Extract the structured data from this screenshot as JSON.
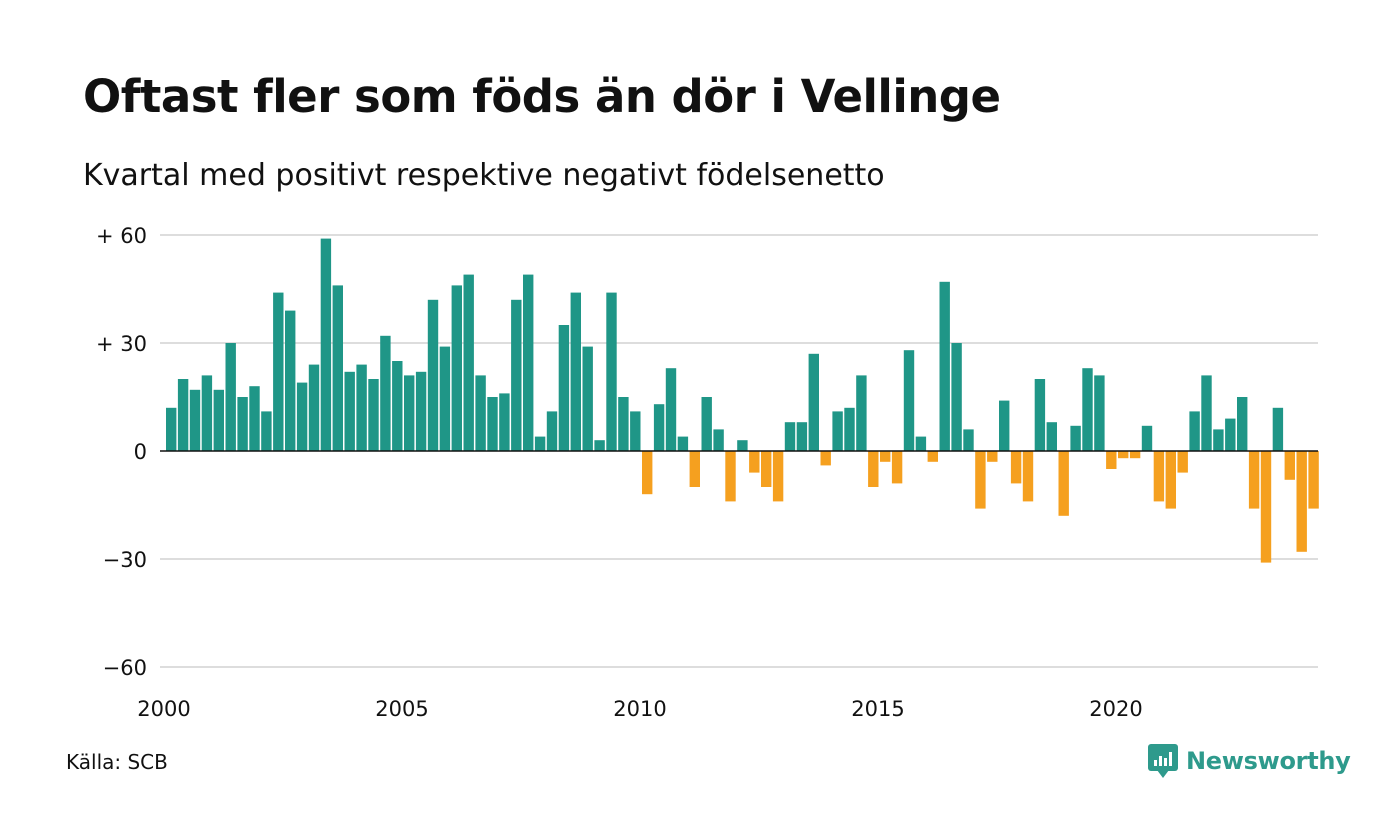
{
  "title": "Oftast fler som föds än dör i Vellinge",
  "subtitle": "Kvartal med positivt respektive negativt födelsenetto",
  "source": "Källa: SCB",
  "brand": "Newsworthy",
  "colors": {
    "positive": "#1f9687",
    "negative": "#f5a01f",
    "grid": "#dddddd",
    "brand": "#2e9a8c"
  },
  "chart_data": {
    "type": "bar",
    "ylim": [
      -60,
      60
    ],
    "y_ticks": [
      60,
      30,
      0,
      -30,
      -60
    ],
    "y_tick_labels": [
      "+ 60",
      "+ 30",
      "0",
      "−30",
      "−60"
    ],
    "x_ticks": [
      2000,
      2005,
      2010,
      2015,
      2020
    ],
    "x_tick_labels": [
      "2000",
      "2005",
      "2010",
      "2015",
      "2020"
    ],
    "x_start": 2000,
    "periods_per_year": 4,
    "grid": true,
    "values": [
      12,
      20,
      17,
      21,
      17,
      30,
      15,
      18,
      11,
      44,
      39,
      19,
      24,
      59,
      46,
      22,
      24,
      20,
      32,
      25,
      21,
      22,
      42,
      29,
      46,
      49,
      21,
      15,
      16,
      42,
      49,
      4,
      11,
      35,
      44,
      29,
      3,
      44,
      15,
      11,
      -12,
      13,
      23,
      4,
      -10,
      15,
      6,
      -14,
      3,
      -6,
      -10,
      -14,
      8,
      8,
      27,
      -4,
      11,
      12,
      21,
      -10,
      -3,
      -9,
      28,
      4,
      -3,
      47,
      30,
      6,
      -16,
      -3,
      14,
      -9,
      -14,
      20,
      8,
      -18,
      7,
      23,
      21,
      -5,
      -2,
      -2,
      7,
      -14,
      -16,
      -6,
      11,
      21,
      6,
      9,
      15,
      -16,
      -31,
      12,
      -8,
      -28,
      -16
    ]
  }
}
